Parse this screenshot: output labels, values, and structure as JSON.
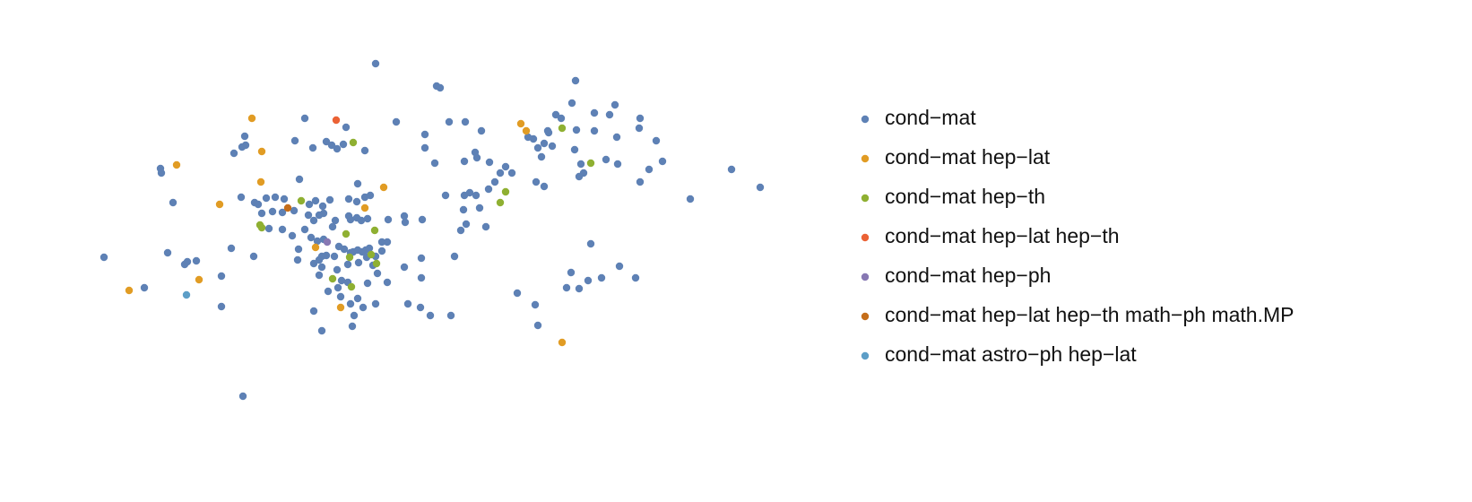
{
  "chart_data": {
    "type": "scatter",
    "xlim": [
      0,
      900
    ],
    "ylim": [
      0,
      500
    ],
    "series": [
      {
        "name": "cond−mat",
        "color": "#5e81b5",
        "x": [
          419,
          487,
          491,
          642,
          638,
          686,
          663,
          680,
          714,
          620,
          626,
          611,
          612,
          643,
          663,
          688,
          713,
          732,
          739,
          724,
          714,
          676,
          689,
          648,
          651,
          646,
          641,
          616,
          607,
          600,
          595,
          589,
          604,
          607,
          598,
          571,
          564,
          558,
          552,
          545,
          546,
          530,
          532,
          518,
          537,
          519,
          501,
          474,
          474,
          485,
          442,
          497,
          518,
          524,
          531,
          535,
          517,
          520,
          514,
          542,
          507,
          471,
          451,
          452,
          433,
          432,
          426,
          451,
          470,
          470,
          432,
          455,
          469,
          480,
          503,
          577,
          597,
          600,
          637,
          632,
          646,
          656,
          671,
          691,
          709,
          659,
          770,
          816,
          848,
          340,
          386,
          364,
          370,
          376,
          383,
          407,
          349,
          329,
          273,
          274,
          270,
          261,
          179,
          180,
          193,
          269,
          284,
          288,
          297,
          307,
          317,
          334,
          399,
          292,
          304,
          315,
          328,
          345,
          352,
          360,
          368,
          389,
          407,
          398,
          413,
          344,
          350,
          356,
          361,
          374,
          389,
          391,
          398,
          403,
          410,
          300,
          315,
          326,
          333,
          340,
          347,
          354,
          361,
          371,
          378,
          384,
          391,
          394,
          399,
          404,
          408,
          412,
          426,
          332,
          350,
          356,
          359,
          359,
          364,
          373,
          388,
          400,
          409,
          416,
          419,
          356,
          376,
          381,
          388,
          410,
          421,
          366,
          377,
          380,
          391,
          399,
          405,
          419,
          350,
          395,
          393,
          359,
          116,
          161,
          187,
          206,
          209,
          219,
          258,
          283,
          247,
          247,
          271
        ],
        "y": [
          429,
          404,
          402,
          410,
          385,
          383,
          374,
          372,
          368,
          372,
          368,
          354,
          352,
          355,
          354,
          347,
          357,
          343,
          320,
          311,
          297,
          322,
          317,
          317,
          307,
          303,
          333,
          337,
          340,
          335,
          345,
          347,
          325,
          292,
          297,
          307,
          314,
          307,
          297,
          289,
          319,
          330,
          324,
          320,
          354,
          364,
          364,
          350,
          335,
          318,
          364,
          282,
          282,
          285,
          282,
          268,
          266,
          250,
          243,
          247,
          214,
          255,
          259,
          252,
          255,
          230,
          230,
          202,
          212,
          190,
          185,
          161,
          157,
          148,
          148,
          173,
          160,
          137,
          196,
          179,
          178,
          187,
          190,
          203,
          190,
          228,
          278,
          311,
          291,
          368,
          358,
          342,
          338,
          334,
          339,
          332,
          335,
          343,
          348,
          338,
          336,
          329,
          312,
          307,
          274,
          280,
          274,
          272,
          279,
          280,
          278,
          300,
          295,
          262,
          264,
          263,
          265,
          272,
          276,
          270,
          277,
          278,
          280,
          275,
          282,
          260,
          254,
          260,
          262,
          254,
          259,
          255,
          257,
          254,
          256,
          245,
          244,
          237,
          222,
          244,
          235,
          231,
          233,
          247,
          225,
          222,
          218,
          219,
          221,
          219,
          221,
          223,
          220,
          210,
          206,
          210,
          214,
          202,
          215,
          214,
          205,
          207,
          213,
          204,
          214,
          193,
          199,
          187,
          185,
          184,
          195,
          175,
          179,
          169,
          161,
          167,
          157,
          161,
          153,
          148,
          136,
          131,
          213,
          179,
          218,
          205,
          208,
          209,
          223,
          214,
          192,
          158,
          58
        ]
      },
      {
        "name": "cond−mat hep−lat",
        "color": "#e19c24",
        "x": [
          281,
          292,
          197,
          291,
          245,
          428,
          407,
          352,
          144,
          222,
          380,
          581,
          587,
          627
        ],
        "y": [
          368,
          331,
          316,
          297,
          272,
          291,
          268,
          224,
          176,
          188,
          157,
          362,
          354,
          118
        ]
      },
      {
        "name": "cond−mat hep−th",
        "color": "#8fb032",
        "x": [
          394,
          627,
          659,
          564,
          558,
          336,
          290,
          292,
          386,
          418,
          390,
          420,
          414,
          371,
          392
        ],
        "y": [
          341,
          357,
          318,
          286,
          274,
          276,
          249,
          246,
          239,
          243,
          213,
          206,
          216,
          189,
          180
        ]
      },
      {
        "name": "cond−mat hep−lat hep−th",
        "color": "#eb6235",
        "x": [
          375
        ],
        "y": [
          366
        ]
      },
      {
        "name": "cond−mat hep−ph",
        "color": "#8778b3",
        "x": [
          365
        ],
        "y": [
          230
        ]
      },
      {
        "name": "cond−mat hep−lat hep−th math−ph math.MP",
        "color": "#c56e1a",
        "x": [
          321
        ],
        "y": [
          268
        ]
      },
      {
        "name": "cond−mat astro−ph hep−lat",
        "color": "#5d9ec7",
        "x": [
          208
        ],
        "y": [
          171
        ]
      }
    ]
  }
}
